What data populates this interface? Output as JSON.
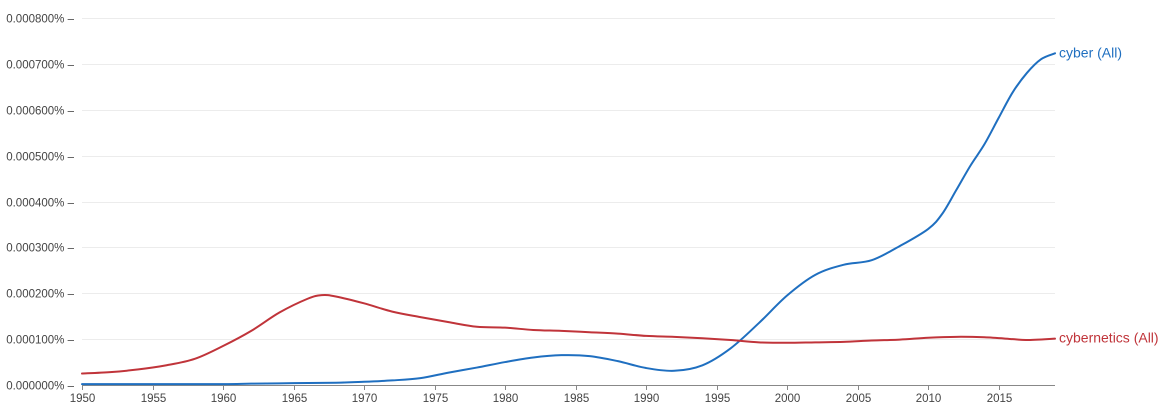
{
  "colors": {
    "cyber": "#1f6fc0",
    "cybernetics": "#c0343a",
    "grid": "#ececec",
    "axis": "#888888",
    "tick_text": "#444444"
  },
  "chart_data": {
    "type": "line",
    "title": "",
    "xlabel": "",
    "ylabel": "",
    "xlim": [
      1950,
      2019
    ],
    "ylim": [
      0,
      8e-06
    ],
    "grid": true,
    "legend": "labels at right end of each line",
    "y_ticks": [
      "0.000000%",
      "0.000100%",
      "0.000200%",
      "0.000300%",
      "0.000400%",
      "0.000500%",
      "0.000600%",
      "0.000700%",
      "0.000800%"
    ],
    "x_ticks": [
      "1950",
      "1955",
      "1960",
      "1965",
      "1970",
      "1975",
      "1980",
      "1985",
      "1990",
      "1995",
      "2000",
      "2005",
      "2010",
      "2015"
    ],
    "x_tick_values": [
      1950,
      1955,
      1960,
      1965,
      1970,
      1975,
      1980,
      1985,
      1990,
      1995,
      2000,
      2005,
      2010,
      2015
    ],
    "y_tick_values": [
      0,
      1e-06,
      2e-06,
      3e-06,
      4e-06,
      5e-06,
      6e-06,
      7e-06,
      8e-06
    ],
    "series": [
      {
        "key": "cyber",
        "name": "cyber (All)",
        "x": [
          1950,
          1955,
          1960,
          1962,
          1965,
          1968,
          1970,
          1972,
          1974,
          1976,
          1978,
          1980,
          1982,
          1984,
          1986,
          1988,
          1990,
          1992,
          1994,
          1996,
          1998,
          2000,
          2002,
          2004,
          2006,
          2008,
          2010,
          2011,
          2012,
          2013,
          2014,
          2015,
          2016,
          2017,
          2018,
          2019
        ],
        "y": [
          2e-08,
          2e-08,
          2e-08,
          3e-08,
          4e-08,
          5e-08,
          7e-08,
          1e-07,
          1.5e-07,
          2.7e-07,
          3.8e-07,
          5e-07,
          6e-07,
          6.5e-07,
          6.3e-07,
          5.2e-07,
          3.7e-07,
          3.1e-07,
          4.3e-07,
          8e-07,
          1.35e-06,
          1.95e-06,
          2.4e-06,
          2.62e-06,
          2.72e-06,
          3.03e-06,
          3.4e-06,
          3.73e-06,
          4.25e-06,
          4.78e-06,
          5.25e-06,
          5.82e-06,
          6.38e-06,
          6.8e-06,
          7.1e-06,
          7.23e-06
        ]
      },
      {
        "key": "cybernetics",
        "name": "cybernetics (All)",
        "x": [
          1950,
          1952,
          1954,
          1956,
          1958,
          1960,
          1962,
          1964,
          1966,
          1967,
          1968,
          1970,
          1972,
          1974,
          1976,
          1978,
          1980,
          1982,
          1984,
          1986,
          1988,
          1990,
          1992,
          1994,
          1996,
          1998,
          2000,
          2002,
          2004,
          2006,
          2008,
          2010,
          2012,
          2014,
          2016,
          2017,
          2019
        ],
        "y": [
          2.5e-07,
          2.8e-07,
          3.4e-07,
          4.3e-07,
          5.7e-07,
          8.5e-07,
          1.18e-06,
          1.58e-06,
          1.88e-06,
          1.96e-06,
          1.93e-06,
          1.78e-06,
          1.6e-06,
          1.48e-06,
          1.37e-06,
          1.27e-06,
          1.25e-06,
          1.2e-06,
          1.18e-06,
          1.15e-06,
          1.12e-06,
          1.07e-06,
          1.05e-06,
          1.02e-06,
          9.8e-07,
          9.3e-07,
          9.2e-07,
          9.3e-07,
          9.4e-07,
          9.7e-07,
          9.9e-07,
          1.03e-06,
          1.05e-06,
          1.04e-06,
          1e-06,
          9.8e-07,
          1.01e-06
        ]
      }
    ]
  }
}
